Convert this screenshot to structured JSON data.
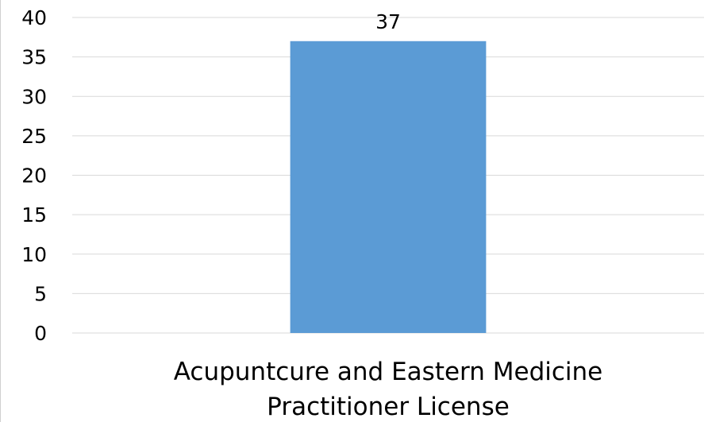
{
  "chart_data": {
    "type": "bar",
    "title": "",
    "xlabel": "",
    "ylabel": "",
    "categories": [
      "Acupuntcure and Eastern Medicine Practitioner License"
    ],
    "category_label_lines": [
      [
        "Acupuntcure and Eastern Medicine",
        "Practitioner License"
      ]
    ],
    "values": [
      37
    ],
    "data_labels": [
      "37"
    ],
    "ylim": [
      0,
      40
    ],
    "yticks": [
      0,
      5,
      10,
      15,
      20,
      25,
      30,
      35,
      40
    ],
    "ytick_labels": [
      "0",
      "5",
      "10",
      "15",
      "20",
      "25",
      "30",
      "35",
      "40"
    ],
    "grid": true,
    "legend": "none",
    "colors": {
      "bar": "#5b9bd5",
      "grid": "#d9d9d9",
      "text": "#000000"
    }
  }
}
